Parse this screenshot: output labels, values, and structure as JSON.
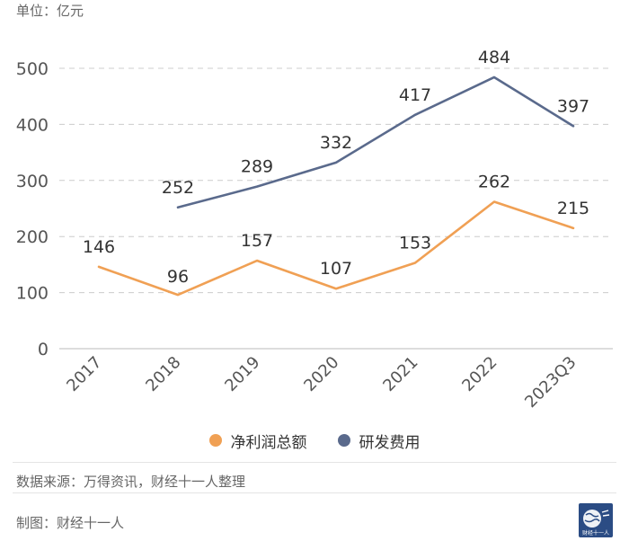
{
  "unit_label": "单位：亿元",
  "colors": {
    "profit": "#f0a054",
    "rnd": "#5a6a8c",
    "grid": "#cccccc",
    "axis_text": "#555555",
    "logo_bg": "#2b4c84"
  },
  "chart_data": {
    "type": "line",
    "categories": [
      "2017",
      "2018",
      "2019",
      "2020",
      "2021",
      "2022",
      "2023Q3"
    ],
    "ylim": [
      0,
      500
    ],
    "yticks": [
      0,
      100,
      200,
      300,
      400,
      500
    ],
    "grid": true,
    "legend_position": "bottom",
    "series": [
      {
        "name": "净利润总额",
        "color": "#f0a054",
        "values": [
          146,
          96,
          157,
          107,
          153,
          262,
          215
        ]
      },
      {
        "name": "研发费用",
        "color": "#5a6a8c",
        "values": [
          null,
          252,
          289,
          332,
          417,
          484,
          397
        ]
      }
    ]
  },
  "legend": {
    "profit_label": "净利润总额",
    "rnd_label": "研发费用"
  },
  "footer": {
    "source": "数据来源：万得资讯，财经十一人整理",
    "credit": "制图：财经十一人",
    "logo_text": "财经十一人"
  }
}
